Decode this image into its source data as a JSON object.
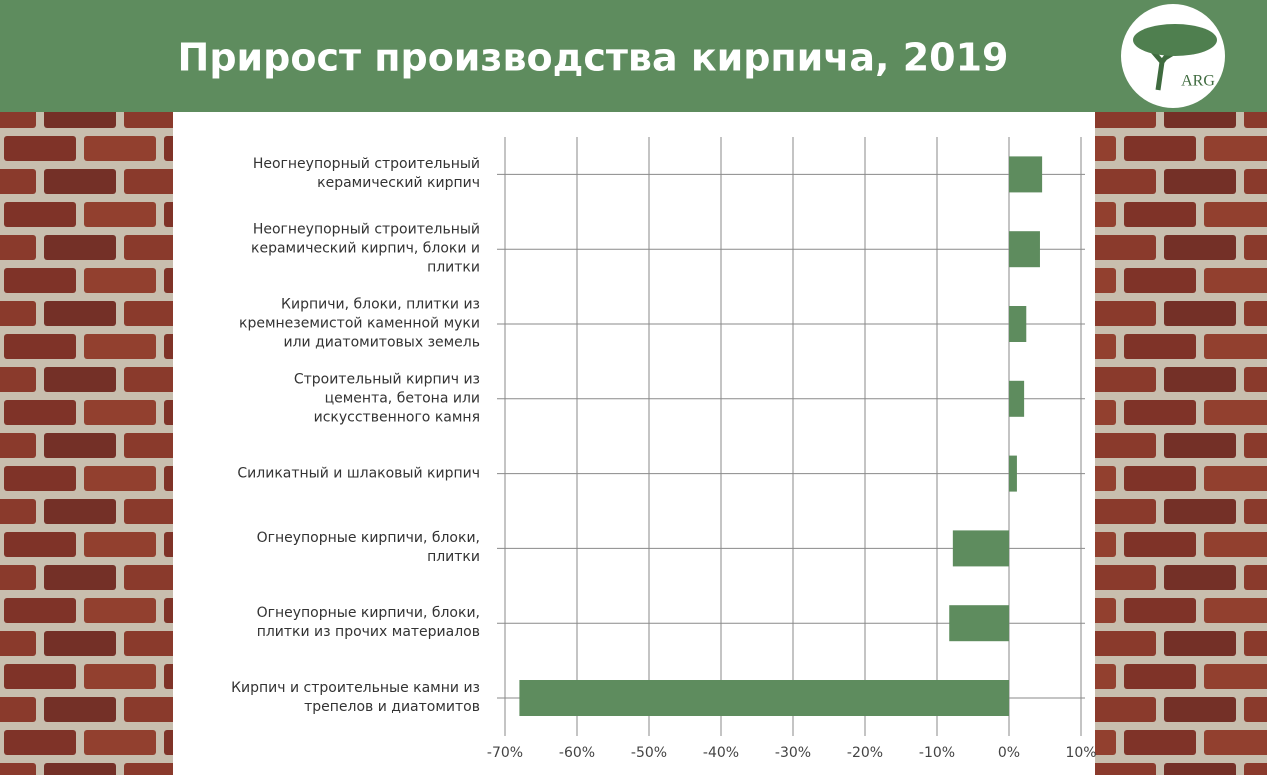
{
  "chart_data": {
    "type": "hbar",
    "title": "Прирост производства кирпича, 2019",
    "logo": "ARG",
    "categories": [
      "Неогнеупорный строительный\nкерамический кирпич",
      "Неогнеупорный строительный\nкерамический кирпич, блоки и\nплитки",
      "Кирпичи, блоки, плитки из\nкремнеземистой каменной муки\nили диатомитовых земель",
      "Строительный кирпич из\nцемента, бетона или\nискусственного камня",
      "Силикатный и шлаковый кирпич",
      "Огнеупорные кирпичи, блоки,\nплитки",
      "Огнеупорные кирпичи, блоки,\nплитки из прочих материалов",
      "Кирпич и строительные камни из\nтрепелов и диатомитов"
    ],
    "values": [
      4.6,
      4.3,
      2.4,
      2.1,
      1.1,
      -7.8,
      -8.3,
      -68
    ],
    "color": "#5e8c5e",
    "xlim": [
      -70,
      10
    ],
    "xticks": [
      {
        "value": -70,
        "label": "-70%"
      },
      {
        "value": -60,
        "label": "-60%"
      },
      {
        "value": -50,
        "label": "-50%"
      },
      {
        "value": -40,
        "label": "-40%"
      },
      {
        "value": -30,
        "label": "-30%"
      },
      {
        "value": -20,
        "label": "-20%"
      },
      {
        "value": -10,
        "label": "-10%"
      },
      {
        "value": 0,
        "label": "0%"
      },
      {
        "value": 10,
        "label": "10%"
      }
    ],
    "grid": true
  }
}
